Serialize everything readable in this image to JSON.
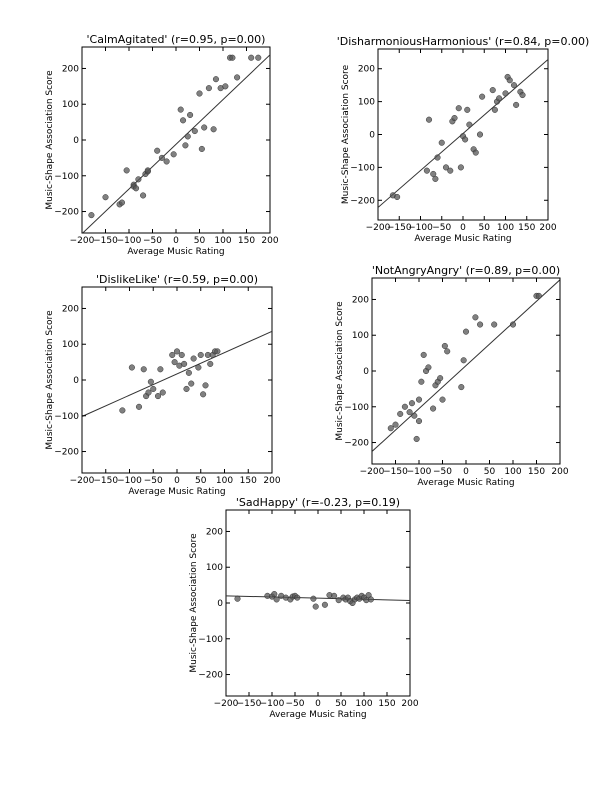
{
  "chart_data": [
    {
      "type": "scatter",
      "title": "'CalmAgitated' (r=0.95, p=0.00)",
      "xlabel": "Average Music Rating",
      "ylabel": "Music-Shape Association Score",
      "xlim": [
        -200,
        200
      ],
      "ylim": [
        -260,
        260
      ],
      "xticks": [
        -200,
        -150,
        -100,
        -50,
        0,
        50,
        100,
        150,
        200
      ],
      "xtick_labels": [
        "−200",
        "−150",
        "−100",
        "−50",
        "0",
        "50",
        "100",
        "150",
        "200"
      ],
      "yticks": [
        -200,
        -100,
        0,
        100,
        200
      ],
      "ytick_labels": [
        "−200",
        "−100",
        "0",
        "100",
        "200"
      ],
      "fit_line": {
        "x": [
          -200,
          200
        ],
        "y": [
          -262,
          238
        ]
      },
      "points": {
        "x": [
          -180,
          -150,
          -120,
          -115,
          -105,
          -90,
          -90,
          -85,
          -80,
          -70,
          -65,
          -60,
          -60,
          -40,
          -30,
          -20,
          -5,
          10,
          15,
          20,
          25,
          30,
          40,
          50,
          55,
          60,
          70,
          80,
          85,
          95,
          105,
          115,
          120,
          130,
          160,
          175
        ],
        "y": [
          -210,
          -160,
          -180,
          -175,
          -85,
          -125,
          -130,
          -135,
          -110,
          -155,
          -95,
          -88,
          -85,
          -30,
          -50,
          -60,
          -40,
          85,
          55,
          -15,
          10,
          70,
          25,
          130,
          -25,
          35,
          145,
          30,
          170,
          145,
          150,
          230,
          230,
          175,
          230,
          230
        ]
      }
    },
    {
      "type": "scatter",
      "title": "'DisharmoniousHarmonious' (r=0.84, p=0.00)",
      "xlabel": "Average Music Rating",
      "ylabel": "Music-Shape Association Score",
      "xlim": [
        -200,
        200
      ],
      "ylim": [
        -260,
        260
      ],
      "xticks": [
        -200,
        -150,
        -100,
        -50,
        0,
        50,
        100,
        150,
        200
      ],
      "xtick_labels": [
        "−200",
        "−150",
        "−100",
        "−50",
        "0",
        "50",
        "100",
        "150",
        "200"
      ],
      "yticks": [
        -200,
        -100,
        0,
        100,
        200
      ],
      "ytick_labels": [
        "−200",
        "−100",
        "0",
        "100",
        "200"
      ],
      "fit_line": {
        "x": [
          -200,
          200
        ],
        "y": [
          -222,
          228
        ]
      },
      "points": {
        "x": [
          -165,
          -155,
          -85,
          -80,
          -70,
          -65,
          -60,
          -50,
          -40,
          -30,
          -25,
          -20,
          -10,
          -5,
          0,
          5,
          10,
          15,
          25,
          30,
          40,
          45,
          70,
          75,
          80,
          85,
          100,
          105,
          110,
          120,
          125,
          135,
          140
        ],
        "y": [
          -185,
          -190,
          -110,
          45,
          -120,
          -135,
          -70,
          -25,
          -100,
          -110,
          40,
          50,
          80,
          -100,
          -5,
          -15,
          75,
          30,
          -45,
          -55,
          0,
          115,
          135,
          75,
          100,
          110,
          125,
          175,
          165,
          150,
          90,
          130,
          120
        ]
      }
    },
    {
      "type": "scatter",
      "title": "'DislikeLike' (r=0.59, p=0.00)",
      "xlabel": "Average Music Rating",
      "ylabel": "Music-Shape Association Score",
      "xlim": [
        -200,
        200
      ],
      "ylim": [
        -260,
        260
      ],
      "xticks": [
        -200,
        -150,
        -100,
        -50,
        0,
        50,
        100,
        150,
        200
      ],
      "xtick_labels": [
        "−200",
        "−150",
        "−100",
        "−50",
        "0",
        "50",
        "100",
        "150",
        "200"
      ],
      "yticks": [
        -200,
        -100,
        0,
        100,
        200
      ],
      "ytick_labels": [
        "−200",
        "−100",
        "0",
        "100",
        "200"
      ],
      "fit_line": {
        "x": [
          -200,
          200
        ],
        "y": [
          -102,
          136
        ]
      },
      "points": {
        "x": [
          -115,
          -95,
          -80,
          -70,
          -65,
          -60,
          -55,
          -50,
          -40,
          -35,
          -30,
          -10,
          -5,
          0,
          5,
          10,
          15,
          20,
          25,
          30,
          35,
          45,
          50,
          55,
          60,
          65,
          70,
          75,
          80,
          85
        ],
        "y": [
          -85,
          35,
          -75,
          30,
          -45,
          -35,
          -5,
          -25,
          -45,
          30,
          -35,
          70,
          50,
          80,
          40,
          70,
          45,
          -25,
          20,
          -10,
          60,
          35,
          70,
          -40,
          -15,
          70,
          45,
          70,
          80,
          80
        ]
      }
    },
    {
      "type": "scatter",
      "title": "'NotAngryAngry' (r=0.89, p=0.00)",
      "xlabel": "Average Music Rating",
      "ylabel": "Music-Shape Association Score",
      "xlim": [
        -200,
        200
      ],
      "ylim": [
        -260,
        260
      ],
      "xticks": [
        -200,
        -150,
        -100,
        -50,
        0,
        50,
        100,
        150,
        200
      ],
      "xtick_labels": [
        "−200",
        "−150",
        "−100",
        "−50",
        "0",
        "50",
        "100",
        "150",
        "200"
      ],
      "yticks": [
        -200,
        -100,
        0,
        100,
        200
      ],
      "ytick_labels": [
        "−200",
        "−100",
        "0",
        "100",
        "200"
      ],
      "fit_line": {
        "x": [
          -200,
          200
        ],
        "y": [
          -225,
          255
        ]
      },
      "points": {
        "x": [
          -160,
          -150,
          -140,
          -130,
          -120,
          -115,
          -110,
          -105,
          -100,
          -100,
          -95,
          -90,
          -85,
          -80,
          -70,
          -65,
          -60,
          -55,
          -50,
          -45,
          -40,
          -10,
          -5,
          0,
          20,
          30,
          60,
          100,
          150,
          155
        ],
        "y": [
          -160,
          -150,
          -120,
          -100,
          -115,
          -90,
          -125,
          -190,
          -140,
          -80,
          -30,
          45,
          0,
          10,
          -105,
          -40,
          -30,
          -20,
          -80,
          70,
          55,
          -45,
          30,
          110,
          150,
          130,
          130,
          130,
          210,
          210
        ]
      }
    },
    {
      "type": "scatter",
      "title": "'SadHappy' (r=-0.23, p=0.19)",
      "xlabel": "Average Music Rating",
      "ylabel": "Music-Shape Association Score",
      "xlim": [
        -200,
        200
      ],
      "ylim": [
        -260,
        260
      ],
      "xticks": [
        -200,
        -150,
        -100,
        -50,
        0,
        50,
        100,
        150,
        200
      ],
      "xtick_labels": [
        "−200",
        "−150",
        "−100",
        "−50",
        "0",
        "50",
        "100",
        "150",
        "200"
      ],
      "yticks": [
        -200,
        -100,
        0,
        100,
        200
      ],
      "ytick_labels": [
        "−200",
        "−100",
        "0",
        "100",
        "200"
      ],
      "fit_line": {
        "x": [
          -200,
          200
        ],
        "y": [
          20,
          7
        ]
      },
      "points": {
        "x": [
          -175,
          -110,
          -100,
          -95,
          -90,
          -80,
          -70,
          -60,
          -55,
          -50,
          -45,
          -10,
          -5,
          15,
          25,
          35,
          45,
          55,
          60,
          65,
          70,
          75,
          80,
          85,
          90,
          95,
          100,
          105,
          110,
          115
        ],
        "y": [
          12,
          20,
          18,
          25,
          10,
          20,
          15,
          10,
          18,
          20,
          15,
          12,
          -10,
          -5,
          22,
          20,
          8,
          15,
          10,
          15,
          5,
          0,
          10,
          15,
          12,
          20,
          15,
          8,
          22,
          10
        ]
      }
    }
  ]
}
